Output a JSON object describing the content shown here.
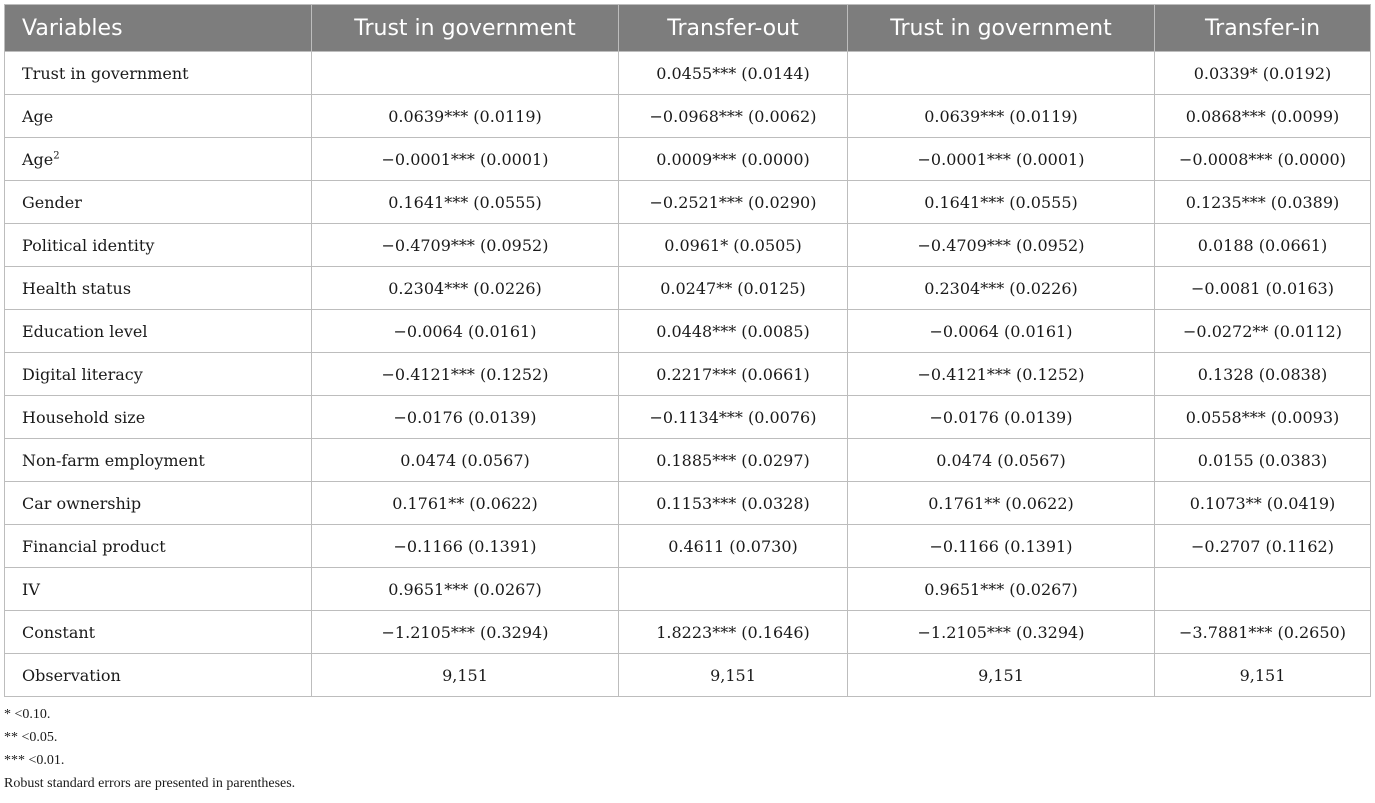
{
  "table": {
    "headers": [
      "Variables",
      "Trust in government",
      "Transfer-out",
      "Trust in government",
      "Transfer-in"
    ],
    "rows": [
      {
        "label": "Trust in government",
        "sup": "",
        "cells": [
          "",
          "0.0455*** (0.0144)",
          "",
          "0.0339* (0.0192)"
        ]
      },
      {
        "label": "Age",
        "sup": "",
        "cells": [
          "0.0639*** (0.0119)",
          "−0.0968*** (0.0062)",
          "0.0639*** (0.0119)",
          "0.0868*** (0.0099)"
        ]
      },
      {
        "label": "Age",
        "sup": "2",
        "cells": [
          "−0.0001*** (0.0001)",
          "0.0009*** (0.0000)",
          "−0.0001*** (0.0001)",
          "−0.0008*** (0.0000)"
        ]
      },
      {
        "label": "Gender",
        "sup": "",
        "cells": [
          "0.1641*** (0.0555)",
          "−0.2521*** (0.0290)",
          "0.1641*** (0.0555)",
          "0.1235*** (0.0389)"
        ]
      },
      {
        "label": "Political identity",
        "sup": "",
        "cells": [
          "−0.4709*** (0.0952)",
          "0.0961* (0.0505)",
          "−0.4709*** (0.0952)",
          "0.0188 (0.0661)"
        ]
      },
      {
        "label": "Health status",
        "sup": "",
        "cells": [
          "0.2304*** (0.0226)",
          "0.0247** (0.0125)",
          "0.2304*** (0.0226)",
          "−0.0081 (0.0163)"
        ]
      },
      {
        "label": "Education level",
        "sup": "",
        "cells": [
          "−0.0064 (0.0161)",
          "0.0448*** (0.0085)",
          "−0.0064 (0.0161)",
          "−0.0272** (0.0112)"
        ]
      },
      {
        "label": "Digital literacy",
        "sup": "",
        "cells": [
          "−0.4121*** (0.1252)",
          "0.2217*** (0.0661)",
          "−0.4121*** (0.1252)",
          "0.1328 (0.0838)"
        ]
      },
      {
        "label": "Household size",
        "sup": "",
        "cells": [
          "−0.0176 (0.0139)",
          "−0.1134*** (0.0076)",
          "−0.0176 (0.0139)",
          "0.0558*** (0.0093)"
        ]
      },
      {
        "label": "Non-farm employment",
        "sup": "",
        "cells": [
          "0.0474 (0.0567)",
          "0.1885*** (0.0297)",
          "0.0474 (0.0567)",
          "0.0155 (0.0383)"
        ]
      },
      {
        "label": "Car ownership",
        "sup": "",
        "cells": [
          "0.1761** (0.0622)",
          "0.1153*** (0.0328)",
          "0.1761** (0.0622)",
          "0.1073** (0.0419)"
        ]
      },
      {
        "label": "Financial product",
        "sup": "",
        "cells": [
          "−0.1166 (0.1391)",
          "0.4611 (0.0730)",
          "−0.1166 (0.1391)",
          "−0.2707 (0.1162)"
        ]
      },
      {
        "label": "IV",
        "sup": "",
        "cells": [
          "0.9651*** (0.0267)",
          "",
          "0.9651*** (0.0267)",
          ""
        ]
      },
      {
        "label": "Constant",
        "sup": "",
        "cells": [
          "−1.2105*** (0.3294)",
          "1.8223*** (0.1646)",
          "−1.2105*** (0.3294)",
          "−3.7881*** (0.2650)"
        ]
      },
      {
        "label": "Observation",
        "sup": "",
        "cells": [
          "9,151",
          "9,151",
          "9,151",
          "9,151"
        ]
      }
    ]
  },
  "notes": [
    "*  <0.10.",
    "**  <0.05.",
    "***  <0.01.",
    "Robust standard errors are presented in parentheses."
  ]
}
